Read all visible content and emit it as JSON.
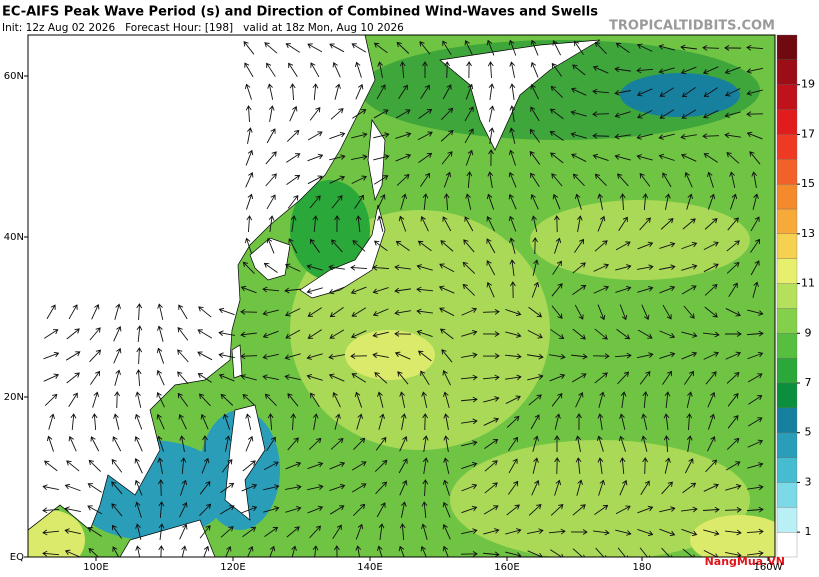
{
  "header": {
    "title": "EC-AIFS Peak Wave Period (s) and Direction of Combined Wind-Waves and Swells",
    "subtitle": "Init: 12z Aug 02 2026   Forecast Hour: [198]   valid at 18z Mon, Aug 10 2026",
    "source": "TROPICALTIDBITS.COM"
  },
  "map": {
    "lat_labels": [
      "60N",
      "40N",
      "20N",
      "EQ"
    ],
    "lon_labels": [
      "100E",
      "120E",
      "140E",
      "160E",
      "180",
      "160W"
    ]
  },
  "colorbar": {
    "clim": [
      0,
      21
    ],
    "ticks": [
      1,
      3,
      5,
      7,
      9,
      11,
      13,
      15,
      17,
      19
    ],
    "colors": [
      "#ffffff",
      "#b8f0f5",
      "#7cd9e6",
      "#45bccf",
      "#2a9db8",
      "#17809f",
      "#0b8f3c",
      "#2aa839",
      "#56bf3f",
      "#85d04a",
      "#b4e05c",
      "#e6ef6e",
      "#f6d14f",
      "#f7aa3a",
      "#f58a2d",
      "#f2612a",
      "#ee3a23",
      "#e01c1c",
      "#c0121a",
      "#9c0d15",
      "#6e0a10"
    ]
  },
  "logo": "NangMua.VN"
}
